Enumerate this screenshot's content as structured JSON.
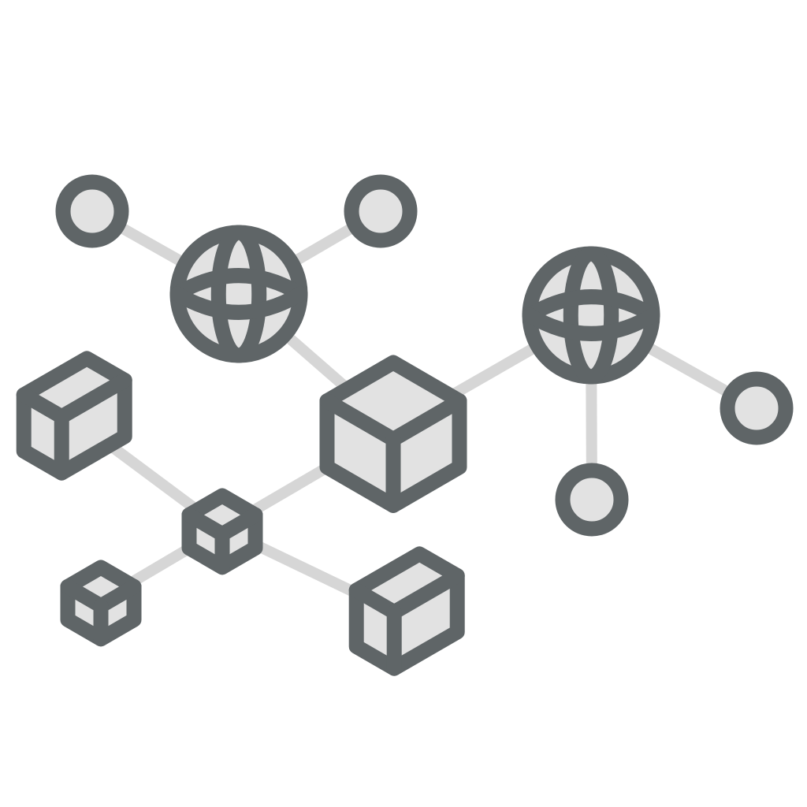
{
  "colors": {
    "outline": "#5f6567",
    "fill": "#e2e2e2",
    "connector": "#d6d6d6",
    "background": "#ffffff"
  },
  "diagram": {
    "kind": "network-icon",
    "node_types": [
      "globe-icon",
      "cube-icon",
      "box-icon",
      "endpoint-icon"
    ],
    "nodes": [
      {
        "id": "endpoint-top-left",
        "type": "endpoint-icon"
      },
      {
        "id": "endpoint-top-middle",
        "type": "endpoint-icon"
      },
      {
        "id": "globe-left",
        "type": "globe-icon"
      },
      {
        "id": "globe-right",
        "type": "globe-icon"
      },
      {
        "id": "endpoint-right",
        "type": "endpoint-icon"
      },
      {
        "id": "endpoint-bottom-right",
        "type": "endpoint-icon"
      },
      {
        "id": "cube-center",
        "type": "cube-icon"
      },
      {
        "id": "box-left",
        "type": "box-icon"
      },
      {
        "id": "cube-small-middle",
        "type": "cube-icon"
      },
      {
        "id": "cube-small-bottom-left",
        "type": "cube-icon"
      },
      {
        "id": "box-bottom",
        "type": "box-icon"
      }
    ],
    "edges": [
      [
        "endpoint-top-left",
        "globe-left"
      ],
      [
        "endpoint-top-middle",
        "globe-left"
      ],
      [
        "globe-left",
        "cube-center"
      ],
      [
        "cube-center",
        "globe-right"
      ],
      [
        "globe-right",
        "endpoint-right"
      ],
      [
        "globe-right",
        "endpoint-bottom-right"
      ],
      [
        "cube-center",
        "cube-small-middle"
      ],
      [
        "box-left",
        "cube-small-middle"
      ],
      [
        "cube-small-middle",
        "cube-small-bottom-left"
      ],
      [
        "cube-small-middle",
        "box-bottom"
      ]
    ]
  }
}
